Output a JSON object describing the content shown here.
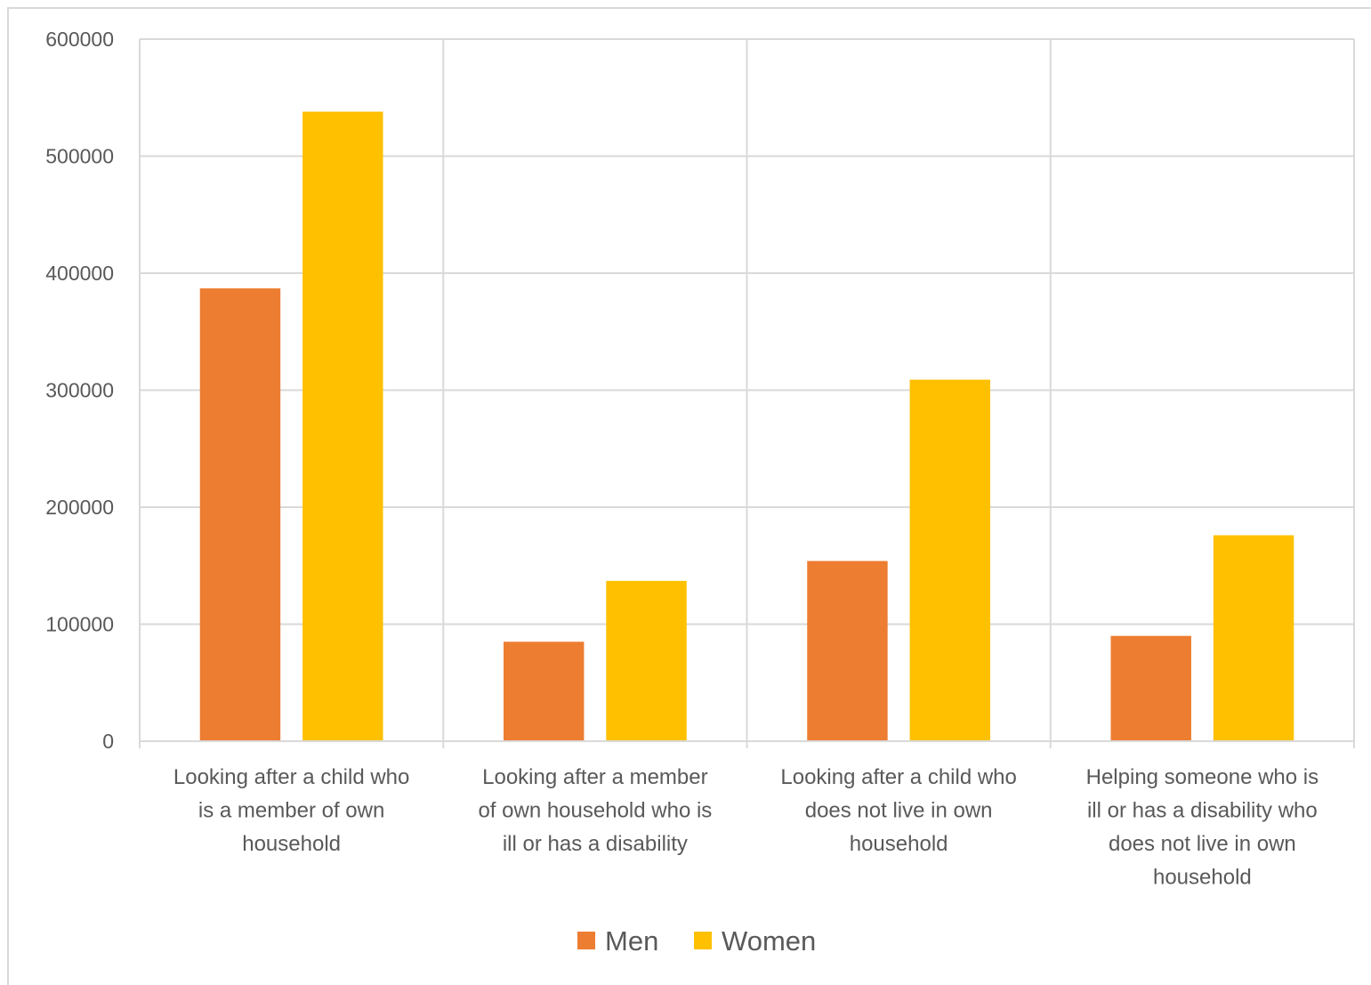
{
  "chart_data": {
    "type": "bar",
    "categories": [
      [
        "Looking after a child who",
        "is a member of own",
        "household"
      ],
      [
        "Looking after a member",
        "of own household who is",
        "ill or has a disability"
      ],
      [
        "Looking after a child who",
        "does not live in own",
        "household"
      ],
      [
        "Helping someone who is",
        "ill or has a disability who",
        "does not live in own",
        "household"
      ]
    ],
    "series": [
      {
        "name": "Men",
        "color": "#ED7D31",
        "values": [
          387000,
          85000,
          154000,
          90000
        ]
      },
      {
        "name": "Women",
        "color": "#FFC000",
        "values": [
          538000,
          137000,
          309000,
          176000
        ]
      }
    ],
    "ylim": [
      0,
      600000
    ],
    "yticks": [
      "0",
      "100000",
      "200000",
      "300000",
      "400000",
      "500000",
      "600000"
    ],
    "grid": true,
    "legend_position": "bottom"
  }
}
